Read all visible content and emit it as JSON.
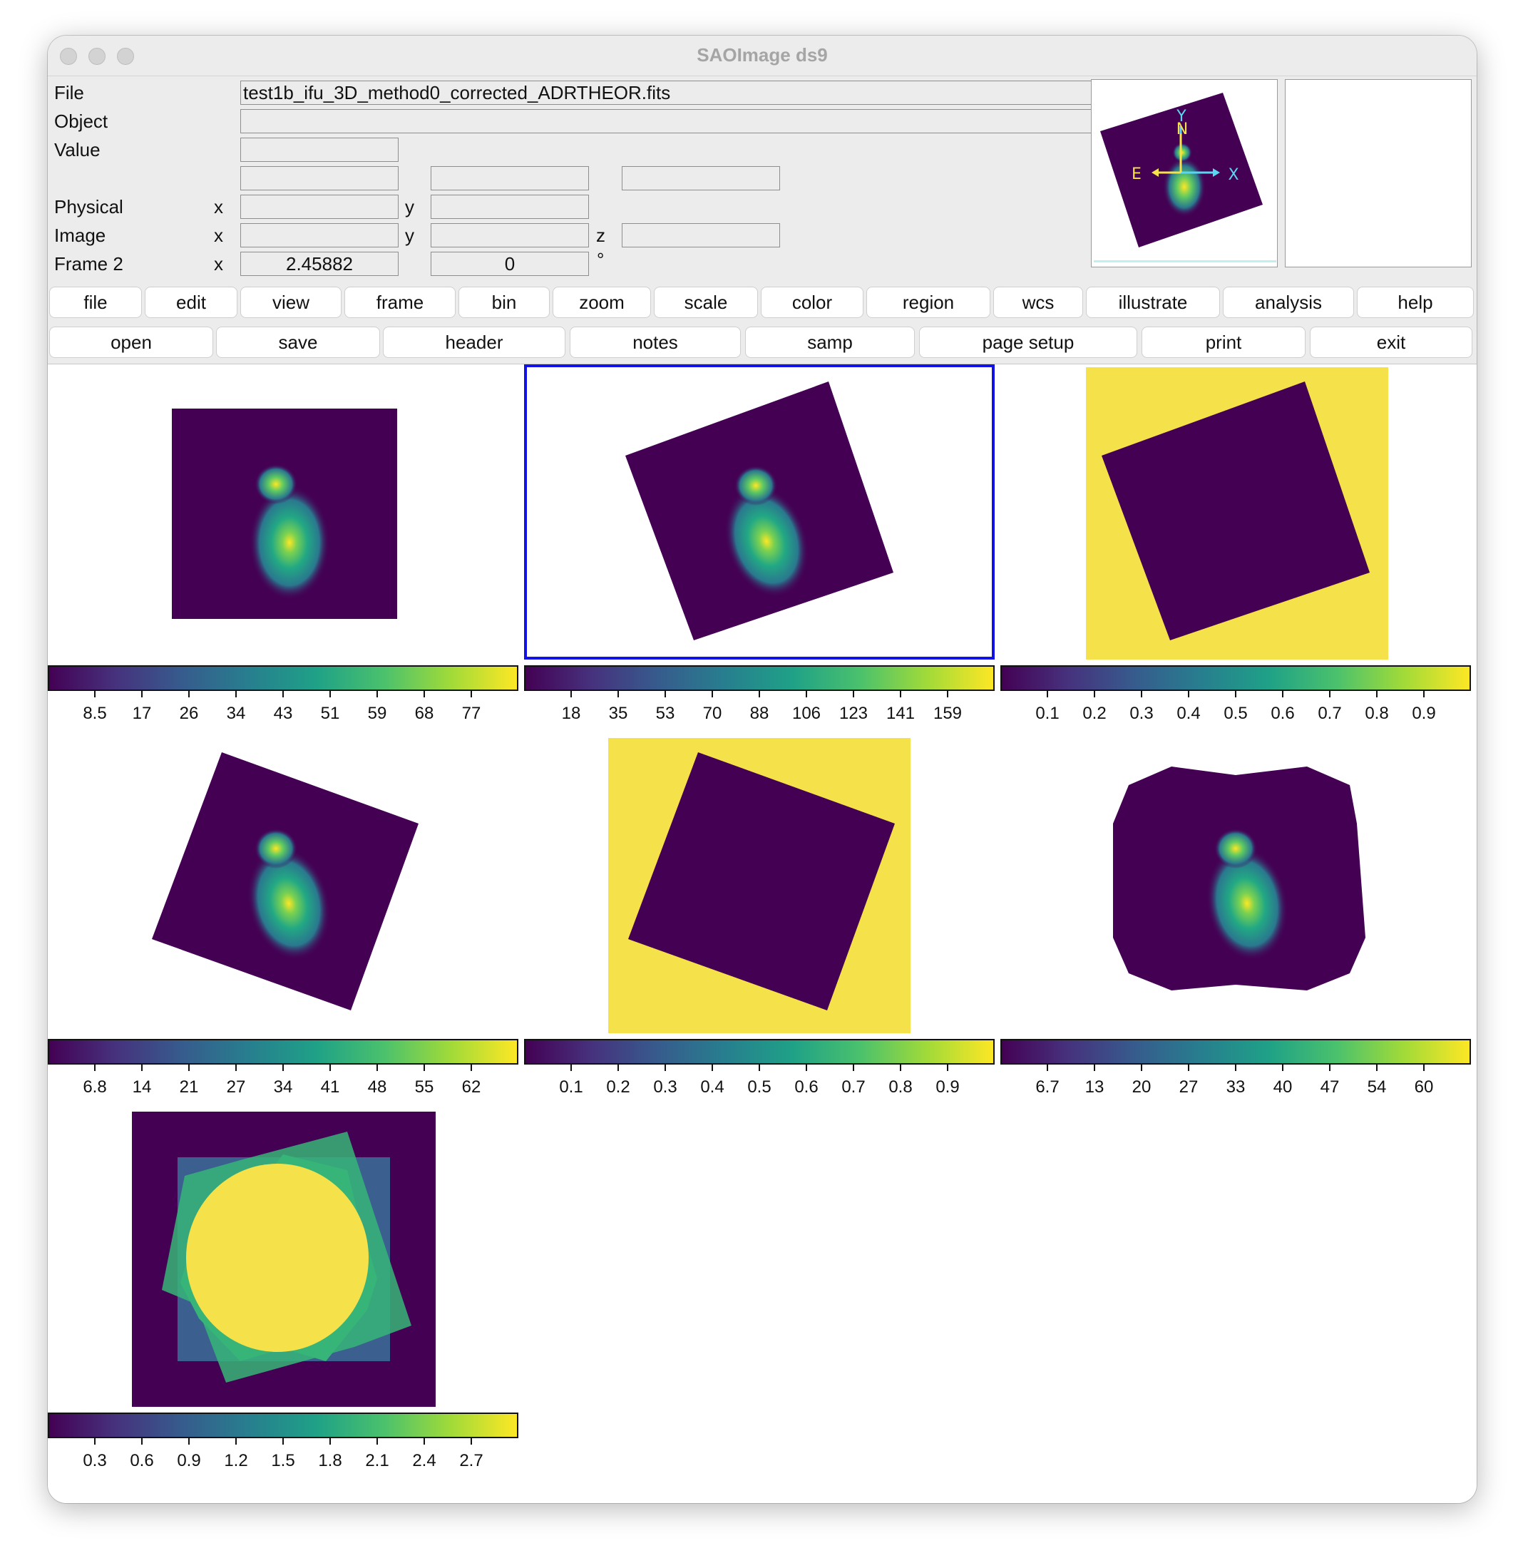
{
  "window": {
    "title": "SAOImage ds9"
  },
  "info": {
    "file_label": "File",
    "file_value": "test1b_ifu_3D_method0_corrected_ADRTHEOR.fits",
    "object_label": "Object",
    "object_value": "",
    "value_label": "Value",
    "value_value": "",
    "physical_label": "Physical",
    "image_label": "Image",
    "frame_label": "Frame 2",
    "x_label": "x",
    "y_label": "y",
    "z_label": "z",
    "frame_x": "2.45882",
    "frame_y": "0",
    "degree_symbol": "°"
  },
  "panner": {
    "compass": {
      "n": "N",
      "e": "E",
      "x": "X",
      "y": "Y"
    }
  },
  "menubar": [
    "file",
    "edit",
    "view",
    "frame",
    "bin",
    "zoom",
    "scale",
    "color",
    "region",
    "wcs",
    "illustrate",
    "analysis",
    "help"
  ],
  "buttonbar": [
    "open",
    "save",
    "header",
    "notes",
    "samp",
    "page setup",
    "print",
    "exit"
  ],
  "colormap": "viridis",
  "colors": {
    "current_frame_outline": "#1212e6",
    "mask_low": "#440154",
    "mask_high": "#f5e14a"
  },
  "frames": [
    {
      "name": "frame1",
      "content": "galaxy",
      "colorbar_ticks": [
        "8.5",
        "17",
        "26",
        "34",
        "43",
        "51",
        "59",
        "68",
        "77"
      ]
    },
    {
      "name": "frame2",
      "content": "galaxy",
      "current": true,
      "colorbar_ticks": [
        "18",
        "35",
        "53",
        "70",
        "88",
        "106",
        "123",
        "141",
        "159"
      ]
    },
    {
      "name": "frame3",
      "content": "mask",
      "colorbar_ticks": [
        "0.1",
        "0.2",
        "0.3",
        "0.4",
        "0.5",
        "0.6",
        "0.7",
        "0.8",
        "0.9"
      ]
    },
    {
      "name": "frame4",
      "content": "galaxy",
      "colorbar_ticks": [
        "6.8",
        "14",
        "21",
        "27",
        "34",
        "41",
        "48",
        "55",
        "62"
      ]
    },
    {
      "name": "frame5",
      "content": "mask",
      "colorbar_ticks": [
        "0.1",
        "0.2",
        "0.3",
        "0.4",
        "0.5",
        "0.6",
        "0.7",
        "0.8",
        "0.9"
      ]
    },
    {
      "name": "frame6",
      "content": "galaxy",
      "colorbar_ticks": [
        "6.7",
        "13",
        "20",
        "27",
        "33",
        "40",
        "47",
        "54",
        "60"
      ]
    },
    {
      "name": "frame7",
      "content": "coverage",
      "colorbar_ticks": [
        "0.3",
        "0.6",
        "0.9",
        "1.2",
        "1.5",
        "1.8",
        "2.1",
        "2.4",
        "2.7"
      ]
    }
  ]
}
